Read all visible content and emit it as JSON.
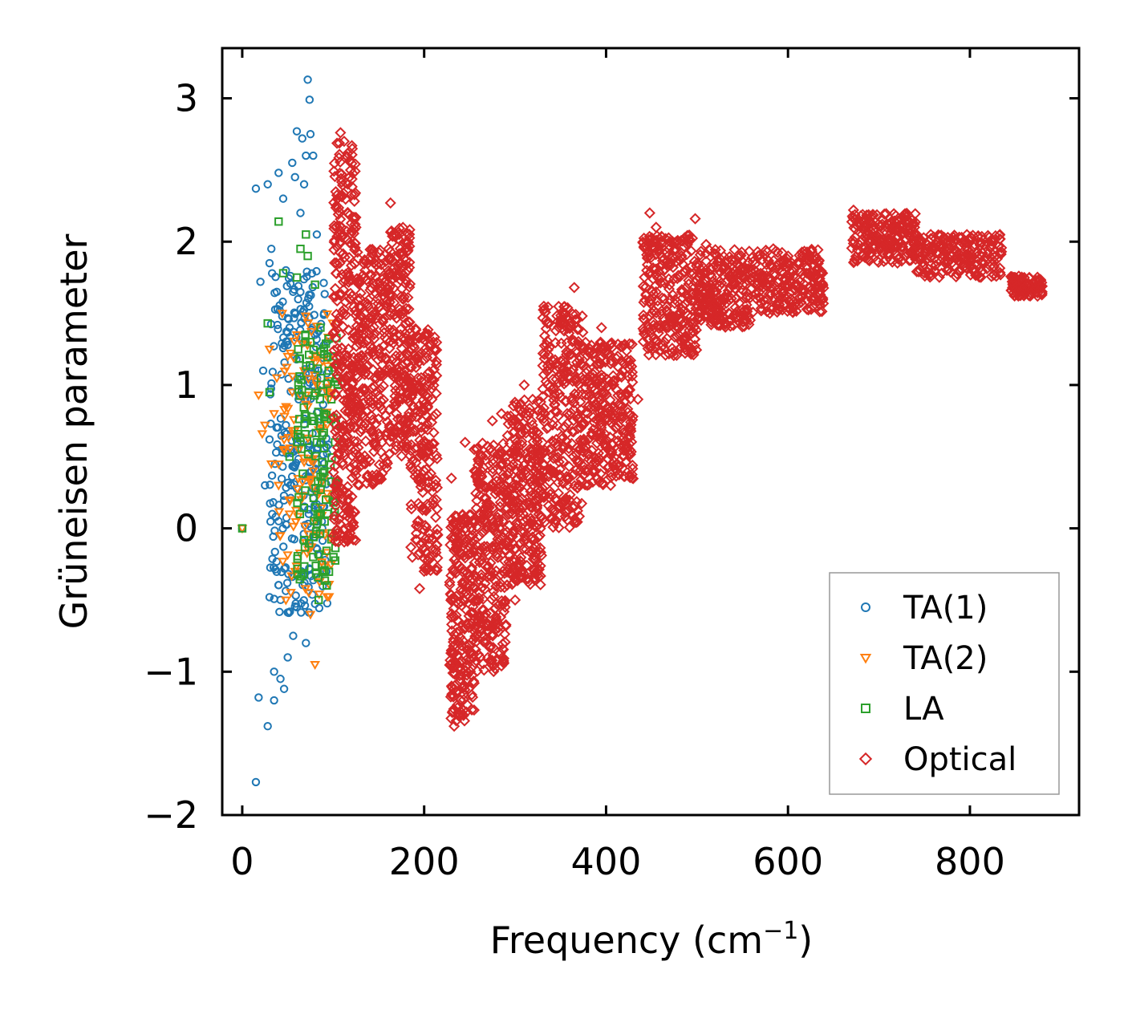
{
  "chart_data": {
    "type": "scatter",
    "xlabel": "Frequency (cm",
    "xlabel_sup": "−1",
    "xlabel_suffix": ")",
    "ylabel": "Grüneisen parameter",
    "xlim": [
      -22,
      920
    ],
    "ylim": [
      -2,
      3.35
    ],
    "x_ticks": [
      0,
      200,
      400,
      600,
      800
    ],
    "x_tick_labels": [
      "0",
      "200",
      "400",
      "600",
      "800"
    ],
    "y_ticks": [
      -2,
      -1,
      0,
      1,
      2,
      3
    ],
    "y_tick_labels": [
      "−2",
      "−1",
      "0",
      "1",
      "2",
      "3"
    ],
    "legend_position": "bottom-right",
    "series": [
      {
        "name": "TA(1)",
        "marker": "circle",
        "color": "#1f77b4",
        "points": [
          [
            0,
            0
          ],
          [
            15,
            -1.77
          ],
          [
            15,
            2.37
          ],
          [
            18,
            -1.18
          ],
          [
            20,
            1.72
          ],
          [
            23,
            1.1
          ],
          [
            25,
            0.3
          ],
          [
            28,
            -1.38
          ],
          [
            28,
            2.4
          ],
          [
            30,
            1.85
          ],
          [
            30,
            0.62
          ],
          [
            30,
            -0.48
          ],
          [
            32,
            1.95
          ],
          [
            33,
            0.1
          ],
          [
            35,
            -1.0
          ],
          [
            35,
            -1.2
          ],
          [
            36,
            0.45
          ],
          [
            38,
            1.65
          ],
          [
            40,
            2.48
          ],
          [
            40,
            0.05
          ],
          [
            42,
            -1.05
          ],
          [
            44,
            1.48
          ],
          [
            45,
            2.3
          ],
          [
            46,
            -1.12
          ],
          [
            48,
            1.8
          ],
          [
            48,
            0.72
          ],
          [
            50,
            -0.9
          ],
          [
            52,
            1.4
          ],
          [
            54,
            0.3
          ],
          [
            55,
            2.55
          ],
          [
            56,
            -0.75
          ],
          [
            58,
            2.45
          ],
          [
            58,
            1.2
          ],
          [
            60,
            -0.55
          ],
          [
            60,
            2.77
          ],
          [
            62,
            0.9
          ],
          [
            64,
            2.2
          ],
          [
            65,
            -0.3
          ],
          [
            66,
            2.72
          ],
          [
            68,
            2.4
          ],
          [
            70,
            2.6
          ],
          [
            70,
            -0.8
          ],
          [
            72,
            3.13
          ],
          [
            72,
            1.0
          ],
          [
            74,
            2.99
          ],
          [
            75,
            2.75
          ],
          [
            76,
            0.4
          ],
          [
            78,
            2.6
          ],
          [
            80,
            1.35
          ],
          [
            82,
            2.05
          ],
          [
            84,
            1.1
          ],
          [
            86,
            0.6
          ],
          [
            88,
            0.0
          ],
          [
            90,
            1.5
          ],
          [
            92,
            0.8
          ],
          [
            95,
            1.2
          ]
        ],
        "ranges": [
          {
            "f": [
              30,
              95
            ],
            "g_low": -0.6,
            "g_high": 1.8,
            "n": 260
          }
        ]
      },
      {
        "name": "TA(2)",
        "marker": "triangle-down",
        "color": "#ff7f0e",
        "points": [
          [
            0,
            0
          ],
          [
            18,
            0.93
          ],
          [
            22,
            0.66
          ],
          [
            25,
            0.72
          ],
          [
            30,
            1.25
          ],
          [
            32,
            0.45
          ],
          [
            35,
            0.8
          ],
          [
            38,
            1.05
          ],
          [
            40,
            0.3
          ],
          [
            42,
            -0.05
          ],
          [
            44,
            1.5
          ],
          [
            46,
            0.62
          ],
          [
            48,
            -0.5
          ],
          [
            50,
            1.2
          ],
          [
            52,
            0.1
          ],
          [
            55,
            0.95
          ],
          [
            58,
            -0.3
          ],
          [
            60,
            1.35
          ],
          [
            62,
            0.55
          ],
          [
            65,
            0.2
          ],
          [
            68,
            1.1
          ],
          [
            70,
            -0.1
          ],
          [
            72,
            0.85
          ],
          [
            75,
            -0.6
          ],
          [
            78,
            0.4
          ],
          [
            80,
            -0.95
          ],
          [
            82,
            1.0
          ],
          [
            85,
            0.25
          ],
          [
            88,
            0.7
          ],
          [
            90,
            0.35
          ],
          [
            95,
            0.9
          ]
        ],
        "ranges": [
          {
            "f": [
              40,
              100
            ],
            "g_low": -0.5,
            "g_high": 1.5,
            "n": 110
          }
        ]
      },
      {
        "name": "LA",
        "marker": "square",
        "color": "#2ca02c",
        "points": [
          [
            0,
            0
          ],
          [
            28,
            1.43
          ],
          [
            30,
            0.95
          ],
          [
            40,
            2.14
          ],
          [
            45,
            1.78
          ],
          [
            52,
            0.5
          ],
          [
            60,
            1.75
          ],
          [
            64,
            1.95
          ],
          [
            70,
            2.05
          ],
          [
            72,
            1.9
          ],
          [
            75,
            1.3
          ],
          [
            78,
            -0.2
          ],
          [
            80,
            1.7
          ],
          [
            82,
            0.6
          ],
          [
            84,
            -0.5
          ],
          [
            86,
            1.4
          ],
          [
            88,
            -0.3
          ],
          [
            90,
            0.8
          ],
          [
            92,
            0.2
          ],
          [
            95,
            1.1
          ],
          [
            98,
            0.9
          ],
          [
            100,
            1.2
          ],
          [
            102,
            0.6
          ],
          [
            105,
            1.0
          ]
        ],
        "ranges": [
          {
            "f": [
              60,
              105
            ],
            "g_low": -0.4,
            "g_high": 1.4,
            "n": 130
          }
        ]
      },
      {
        "name": "Optical",
        "marker": "diamond",
        "color": "#d62728",
        "points": [
          [
            108,
            2.76
          ],
          [
            112,
            2.7
          ],
          [
            118,
            2.45
          ],
          [
            125,
            2.1
          ],
          [
            135,
            1.8
          ],
          [
            145,
            1.5
          ],
          [
            163,
            2.27
          ],
          [
            168,
            2.05
          ],
          [
            175,
            1.85
          ],
          [
            195,
            -0.42
          ],
          [
            200,
            -0.3
          ],
          [
            210,
            1.3
          ],
          [
            230,
            0.35
          ],
          [
            233,
            -1.38
          ],
          [
            240,
            -1.3
          ],
          [
            245,
            0.6
          ],
          [
            255,
            0.55
          ],
          [
            275,
            0.75
          ],
          [
            285,
            0.8
          ],
          [
            300,
            -0.5
          ],
          [
            310,
            1.0
          ],
          [
            330,
            0.6
          ],
          [
            355,
            1.5
          ],
          [
            365,
            1.68
          ],
          [
            380,
            1.1
          ],
          [
            395,
            1.4
          ],
          [
            405,
            0.3
          ],
          [
            420,
            1.15
          ],
          [
            435,
            0.9
          ],
          [
            448,
            2.2
          ],
          [
            455,
            2.1
          ],
          [
            470,
            2.0
          ],
          [
            483,
            1.3
          ],
          [
            498,
            2.16
          ],
          [
            510,
            1.98
          ],
          [
            530,
            1.6
          ],
          [
            550,
            1.75
          ],
          [
            580,
            1.5
          ],
          [
            610,
            1.85
          ],
          [
            630,
            1.9
          ],
          [
            638,
            1.78
          ],
          [
            672,
            2.22
          ],
          [
            680,
            2.18
          ],
          [
            700,
            2.05
          ],
          [
            730,
            2.1
          ],
          [
            760,
            1.95
          ],
          [
            800,
            1.93
          ],
          [
            830,
            1.88
          ],
          [
            848,
            1.75
          ],
          [
            860,
            1.68
          ],
          [
            875,
            1.73
          ]
        ],
        "ranges": [
          {
            "f": [
              100,
              125
            ],
            "g_low": -0.1,
            "g_high": 2.7,
            "n": 320
          },
          {
            "f": [
              125,
              160
            ],
            "g_low": 0.3,
            "g_high": 1.95,
            "n": 260
          },
          {
            "f": [
              160,
              185
            ],
            "g_low": 0.5,
            "g_high": 2.1,
            "n": 220
          },
          {
            "f": [
              185,
              215
            ],
            "g_low": -0.3,
            "g_high": 1.4,
            "n": 220
          },
          {
            "f": [
              228,
              255
            ],
            "g_low": -1.35,
            "g_high": 0.1,
            "n": 240
          },
          {
            "f": [
              255,
              290
            ],
            "g_low": -1.0,
            "g_high": 0.6,
            "n": 280
          },
          {
            "f": [
              290,
              330
            ],
            "g_low": -0.4,
            "g_high": 0.9,
            "n": 300
          },
          {
            "f": [
              330,
              375
            ],
            "g_low": 0.0,
            "g_high": 1.55,
            "n": 300
          },
          {
            "f": [
              375,
              430
            ],
            "g_low": 0.3,
            "g_high": 1.3,
            "n": 300
          },
          {
            "f": [
              440,
              500
            ],
            "g_low": 1.2,
            "g_high": 2.05,
            "n": 280
          },
          {
            "f": [
              500,
              560
            ],
            "g_low": 1.4,
            "g_high": 1.95,
            "n": 240
          },
          {
            "f": [
              560,
              640
            ],
            "g_low": 1.5,
            "g_high": 1.95,
            "n": 240
          },
          {
            "f": [
              670,
              740
            ],
            "g_low": 1.85,
            "g_high": 2.2,
            "n": 220
          },
          {
            "f": [
              740,
              835
            ],
            "g_low": 1.75,
            "g_high": 2.05,
            "n": 220
          },
          {
            "f": [
              845,
              880
            ],
            "g_low": 1.62,
            "g_high": 1.76,
            "n": 90
          }
        ]
      }
    ]
  }
}
